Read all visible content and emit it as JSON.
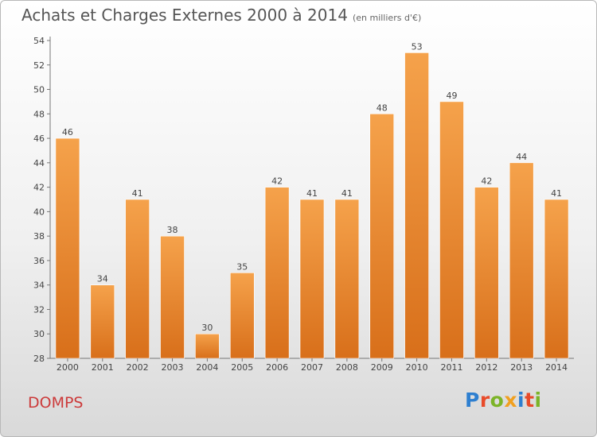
{
  "title": "Achats et Charges Externes 2000 à 2014",
  "subtitle": "(en milliers d'€)",
  "commune": "DOMPS",
  "logo": {
    "letters": [
      "P",
      "r",
      "o",
      "x",
      "i",
      "t",
      "i"
    ],
    "colors": [
      "#2e7fd0",
      "#e84b2a",
      "#7cb428",
      "#f0a020",
      "#2e7fd0",
      "#e84b2a",
      "#7cb428"
    ]
  },
  "colors": {
    "bar_top": "#f5a24b",
    "bar_bottom": "#d86f1a",
    "title": "#555555",
    "commune": "#cc3a3a"
  },
  "chart_data": {
    "type": "bar",
    "categories": [
      "2000",
      "2001",
      "2002",
      "2003",
      "2004",
      "2005",
      "2006",
      "2007",
      "2008",
      "2009",
      "2010",
      "2011",
      "2012",
      "2013",
      "2014"
    ],
    "values": [
      46,
      34,
      41,
      38,
      30,
      35,
      42,
      41,
      41,
      48,
      53,
      49,
      42,
      44,
      41
    ],
    "ylim": [
      28,
      54
    ],
    "yticks": [
      28,
      30,
      32,
      34,
      36,
      38,
      40,
      42,
      44,
      46,
      48,
      50,
      52,
      54
    ],
    "grid": false,
    "data_labels": true
  }
}
